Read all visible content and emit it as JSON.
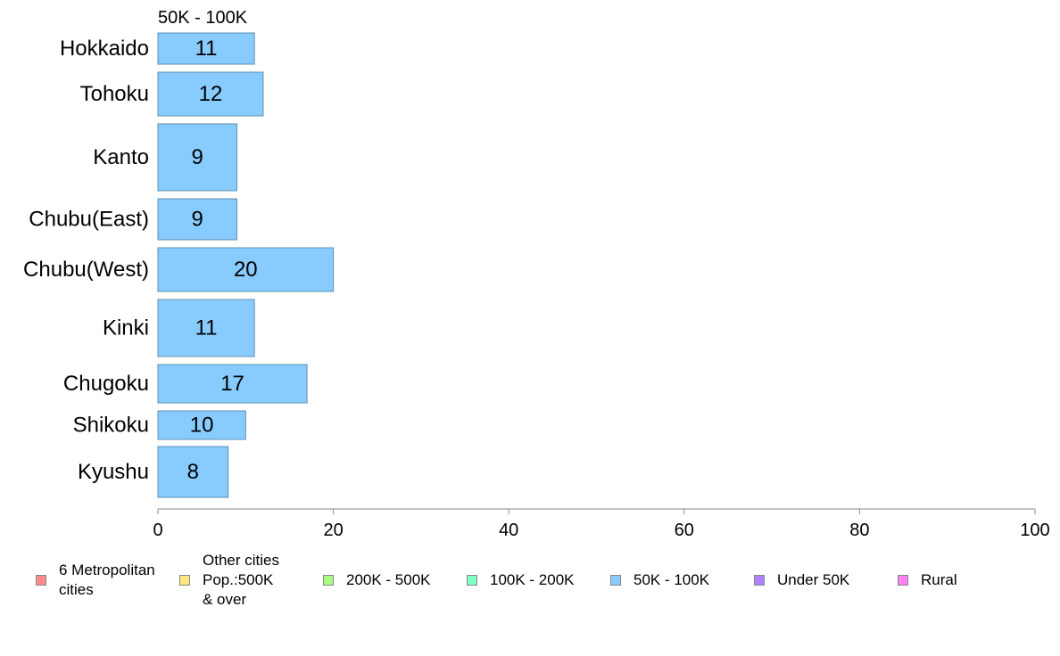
{
  "chart_data": {
    "type": "bar",
    "orientation": "horizontal",
    "title": "50K - 100K",
    "categories": [
      "Hokkaido",
      "Tohoku",
      "Kanto",
      "Chubu(East)",
      "Chubu(West)",
      "Kinki",
      "Chugoku",
      "Shikoku",
      "Kyushu"
    ],
    "values": [
      11,
      12,
      9,
      9,
      20,
      11,
      17,
      10,
      8
    ],
    "xlim": [
      0,
      100
    ],
    "xticks": [
      0,
      20,
      40,
      60,
      80,
      100
    ],
    "grid": false,
    "bar_color": "#88ccff",
    "legend_position": "bottom",
    "legend": [
      {
        "label": "6 Metropolitan\n cities",
        "color": "#ff8c8c"
      },
      {
        "label": "Other cities\nPop.:500K\n & over",
        "color": "#ffe680"
      },
      {
        "label": "200K - 500K",
        "color": "#a6ff80"
      },
      {
        "label": "100K - 200K",
        "color": "#80ffc8"
      },
      {
        "label": "50K - 100K",
        "color": "#88ccff"
      },
      {
        "label": "Under 50K",
        "color": "#b080ff"
      },
      {
        "label": "Rural",
        "color": "#ff80f0"
      }
    ]
  }
}
